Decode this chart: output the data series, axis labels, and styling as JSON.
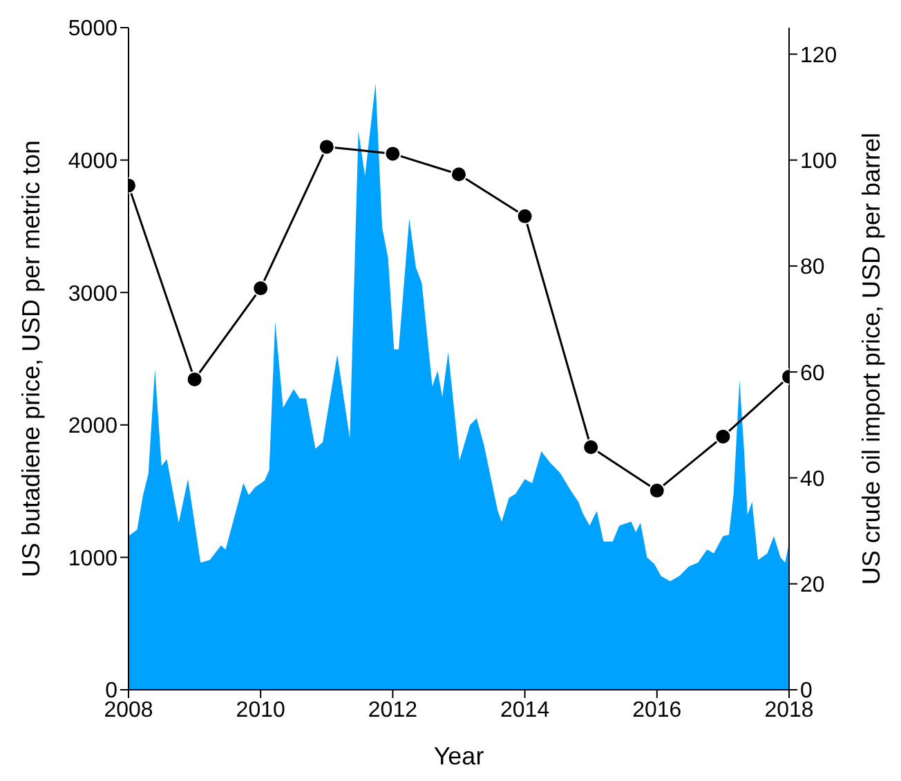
{
  "chart_data": {
    "type": "area",
    "xlabel": "Year",
    "ylabel": "US butadiene price, USD per metric ton",
    "y2label": "US crude oil import price, USD per barrel",
    "xlim": [
      2008,
      2018
    ],
    "xticks": [
      2008,
      2010,
      2012,
      2014,
      2016,
      2018
    ],
    "ylim": [
      0,
      5000
    ],
    "yticks": [
      0,
      1000,
      2000,
      3000,
      4000,
      5000
    ],
    "y2lim": [
      0,
      125
    ],
    "y2ticks": [
      0,
      20,
      40,
      60,
      80,
      100,
      120
    ],
    "grid": false,
    "legend": false,
    "series": [
      {
        "type": "area",
        "color": "#00a2ff",
        "x": [
          2008.0,
          2008.13,
          2008.22,
          2008.3,
          2008.4,
          2008.5,
          2008.58,
          2008.76,
          2008.9,
          2009.09,
          2009.23,
          2009.4,
          2009.47,
          2009.74,
          2009.82,
          2009.92,
          2010.06,
          2010.13,
          2010.22,
          2010.34,
          2010.5,
          2010.59,
          2010.69,
          2010.83,
          2010.94,
          2011.16,
          2011.35,
          2011.48,
          2011.58,
          2011.74,
          2011.84,
          2011.93,
          2012.02,
          2012.09,
          2012.25,
          2012.35,
          2012.44,
          2012.6,
          2012.68,
          2012.75,
          2012.84,
          2013.01,
          2013.17,
          2013.27,
          2013.38,
          2013.59,
          2013.65,
          2013.76,
          2013.86,
          2014.0,
          2014.11,
          2014.25,
          2014.39,
          2014.53,
          2014.7,
          2014.81,
          2014.88,
          2014.98,
          2015.09,
          2015.19,
          2015.33,
          2015.43,
          2015.61,
          2015.68,
          2015.75,
          2015.85,
          2015.96,
          2016.06,
          2016.2,
          2016.34,
          2016.48,
          2016.62,
          2016.76,
          2016.86,
          2017.0,
          2017.09,
          2017.16,
          2017.25,
          2017.32,
          2017.37,
          2017.44,
          2017.53,
          2017.67,
          2017.77,
          2017.87,
          2017.94,
          2018.0
        ],
        "values": [
          1160,
          1210,
          1470,
          1630,
          2420,
          1690,
          1740,
          1260,
          1590,
          960,
          980,
          1090,
          1060,
          1560,
          1470,
          1530,
          1580,
          1660,
          2780,
          2130,
          2270,
          2200,
          2200,
          1820,
          1870,
          2530,
          1900,
          4220,
          3880,
          4580,
          3490,
          3260,
          2570,
          2570,
          3560,
          3190,
          3070,
          2290,
          2410,
          2210,
          2550,
          1730,
          2000,
          2050,
          1850,
          1350,
          1270,
          1450,
          1480,
          1590,
          1560,
          1800,
          1710,
          1640,
          1500,
          1420,
          1330,
          1240,
          1350,
          1120,
          1120,
          1240,
          1270,
          1190,
          1260,
          1000,
          950,
          860,
          820,
          860,
          930,
          960,
          1060,
          1030,
          1160,
          1170,
          1480,
          2340,
          1800,
          1320,
          1420,
          980,
          1030,
          1160,
          1000,
          960,
          1110
        ]
      },
      {
        "type": "line",
        "axis": "y2",
        "color": "#000000",
        "marker": "circle",
        "line_style": "solid",
        "x": [
          2008,
          2009,
          2010,
          2011,
          2012,
          2013,
          2014,
          2015,
          2016,
          2017,
          2018
        ],
        "values": [
          95.2,
          58.6,
          75.8,
          102.5,
          101.2,
          97.3,
          89.4,
          45.8,
          37.6,
          47.8,
          59.1
        ]
      }
    ]
  }
}
